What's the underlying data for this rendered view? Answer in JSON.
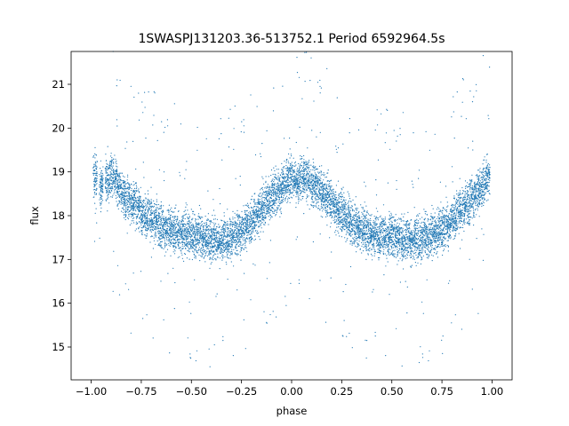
{
  "chart_data": {
    "type": "scatter",
    "title": "1SWASPJ131203.36-513752.1 Period 6592964.5s",
    "xlabel": "phase",
    "ylabel": "flux",
    "xlim": [
      -1.1,
      1.1
    ],
    "ylim": [
      14.25,
      21.75
    ],
    "x_ticks": [
      -1.0,
      -0.75,
      -0.5,
      -0.25,
      0.0,
      0.25,
      0.5,
      0.75,
      1.0
    ],
    "x_tick_labels": [
      "−1.00",
      "−0.75",
      "−0.50",
      "−0.25",
      "0.00",
      "0.25",
      "0.50",
      "0.75",
      "1.00"
    ],
    "y_ticks": [
      15,
      16,
      17,
      18,
      19,
      20,
      21
    ],
    "y_tick_labels": [
      "15",
      "16",
      "17",
      "18",
      "19",
      "20",
      "21"
    ],
    "grid": false,
    "marker_color": "#1f77b4",
    "series": [
      {
        "x": [
          -0.98,
          -0.95,
          -0.92,
          -0.9,
          -0.88,
          -0.86,
          -0.84,
          -0.82,
          -0.8,
          -0.78,
          -0.76,
          -0.74,
          -0.72,
          -0.7,
          -0.68,
          -0.66,
          -0.64,
          -0.62,
          -0.6,
          -0.58,
          -0.56,
          -0.54,
          -0.52,
          -0.5,
          -0.48,
          -0.46,
          -0.44,
          -0.42,
          -0.4,
          -0.38,
          -0.36,
          -0.34,
          -0.32,
          -0.3,
          -0.28,
          -0.26,
          -0.24,
          -0.22,
          -0.2,
          -0.18,
          -0.16,
          -0.14,
          -0.12,
          -0.1,
          -0.08,
          -0.06,
          -0.04,
          -0.02,
          0.0,
          0.02,
          0.04,
          0.06,
          0.08,
          0.1,
          0.12,
          0.14,
          0.16,
          0.18,
          0.2,
          0.22,
          0.24,
          0.26,
          0.28,
          0.3,
          0.32,
          0.34,
          0.36,
          0.38,
          0.4,
          0.42,
          0.44,
          0.46,
          0.48,
          0.5,
          0.52,
          0.54,
          0.56,
          0.58,
          0.6,
          0.62,
          0.64,
          0.66,
          0.68,
          0.7,
          0.72,
          0.74,
          0.76,
          0.78,
          0.8,
          0.82,
          0.84,
          0.86,
          0.88,
          0.9,
          0.92,
          0.94,
          0.96,
          0.98
        ],
        "y": [
          18.9,
          18.7,
          18.8,
          18.9,
          18.8,
          18.6,
          18.5,
          18.4,
          18.3,
          18.3,
          18.2,
          18.0,
          18.0,
          17.9,
          17.9,
          17.8,
          17.7,
          17.7,
          17.7,
          17.6,
          17.6,
          17.6,
          17.6,
          17.5,
          17.5,
          17.6,
          17.5,
          17.5,
          17.4,
          17.5,
          17.4,
          17.5,
          17.4,
          17.5,
          17.6,
          17.6,
          17.7,
          17.8,
          17.8,
          18.0,
          18.1,
          18.2,
          18.3,
          18.4,
          18.5,
          18.6,
          18.7,
          18.8,
          18.9,
          18.8,
          18.8,
          18.9,
          18.8,
          18.7,
          18.7,
          18.6,
          18.5,
          18.4,
          18.3,
          18.2,
          18.1,
          18.0,
          17.9,
          17.8,
          17.8,
          17.7,
          17.7,
          17.6,
          17.6,
          17.6,
          17.5,
          17.5,
          17.5,
          17.6,
          17.5,
          17.5,
          17.4,
          17.5,
          17.4,
          17.5,
          17.4,
          17.5,
          17.5,
          17.6,
          17.6,
          17.7,
          17.7,
          17.8,
          17.9,
          18.0,
          18.1,
          18.2,
          18.3,
          18.4,
          18.5,
          18.6,
          18.7,
          18.9
        ]
      }
    ]
  }
}
